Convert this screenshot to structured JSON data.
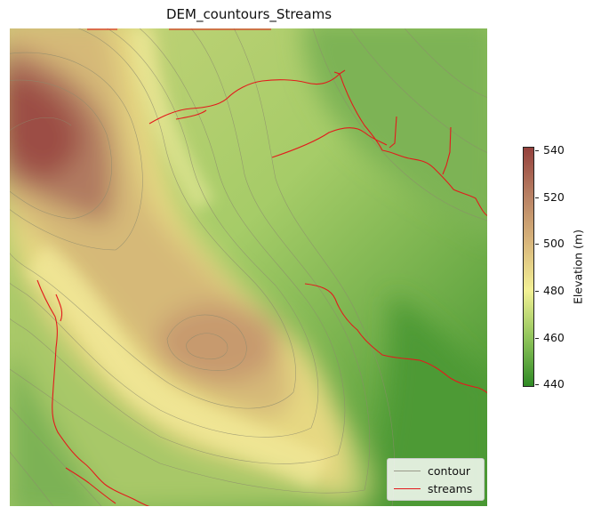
{
  "title": "DEM_countours_Streams",
  "legend": {
    "items": [
      {
        "label": "contour",
        "color": "#9a9a8a"
      },
      {
        "label": "streams",
        "color": "#e31a1c"
      }
    ]
  },
  "colorbar": {
    "label": "Elevation (m)",
    "ticks": [
      "540",
      "520",
      "500",
      "480",
      "460",
      "440"
    ],
    "min": 437,
    "max": 542,
    "colors": [
      "#2f8a25",
      "#8fc45a",
      "#f3f195",
      "#d9b77c",
      "#b88063",
      "#94403c"
    ]
  }
}
